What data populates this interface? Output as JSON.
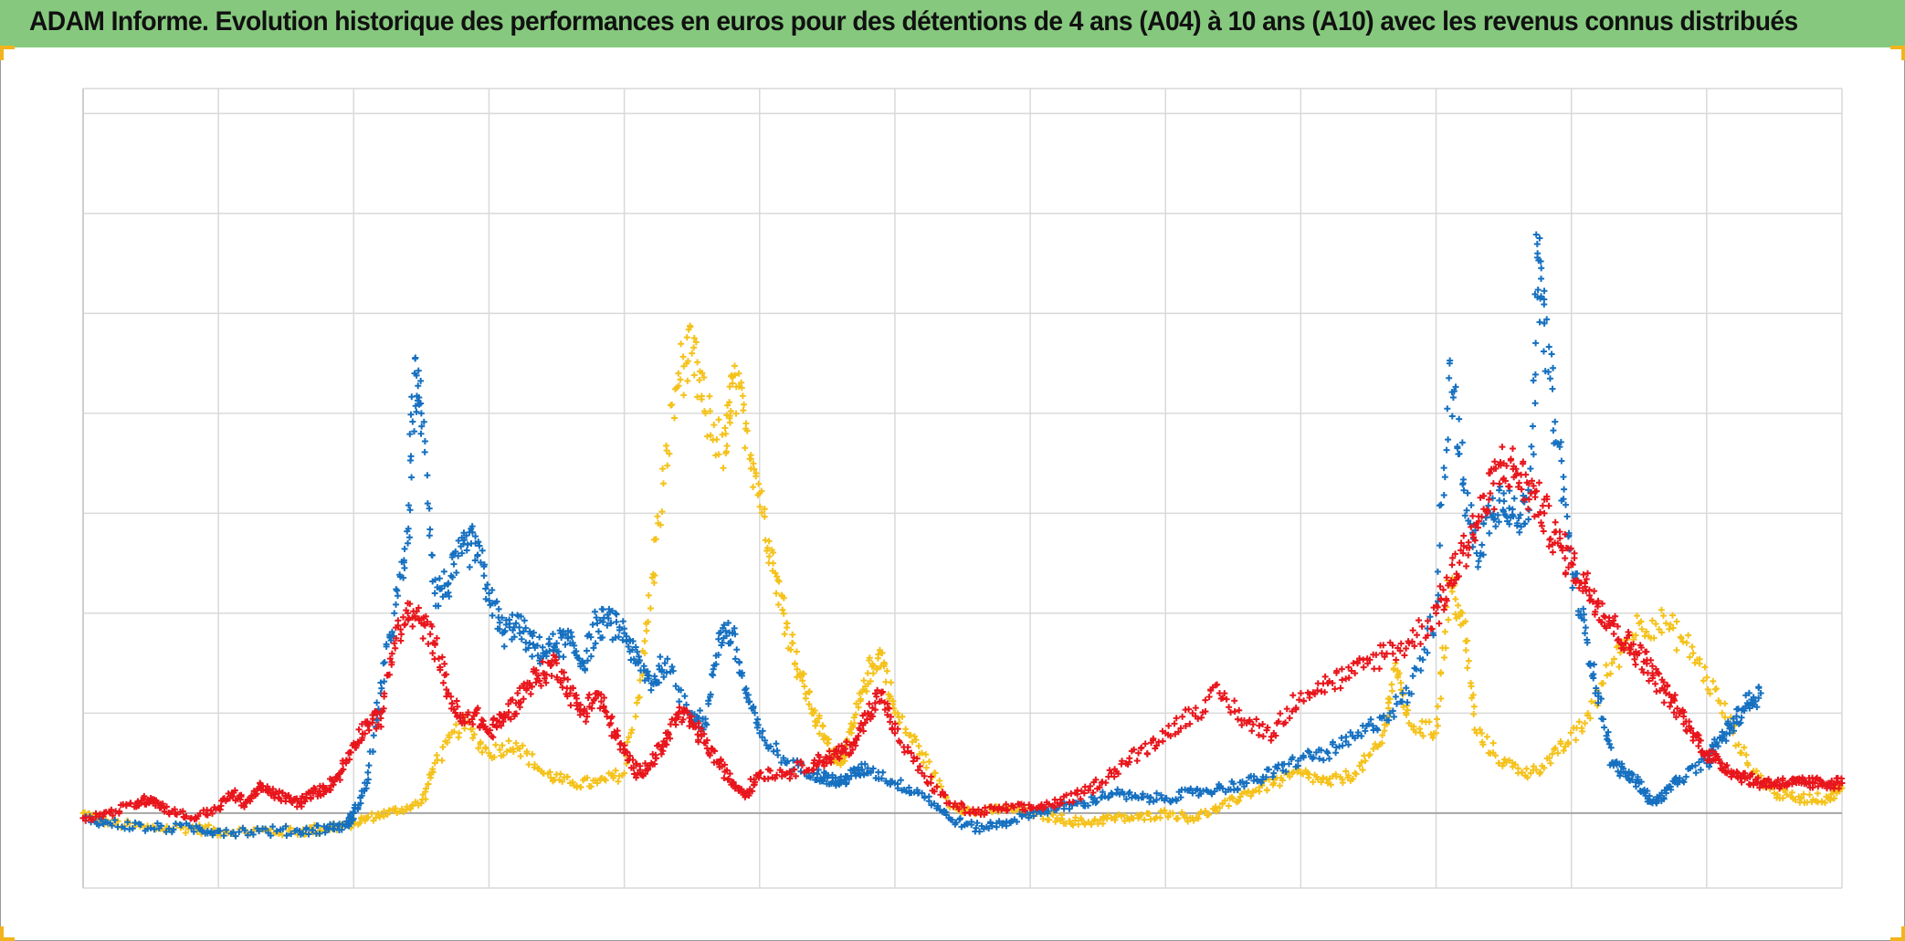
{
  "header": {
    "title": "ADAM Informe. Evolution historique des performances en euros pour des détentions de 4 ans (A04) à 10 ans (A10) avec les revenus connus distribués"
  },
  "chart_data": {
    "type": "scatter",
    "title": "ADAM Informe. Evolution historique des performances en euros pour des détentions de 4 ans (A04) à 10 ans (A10) avec les revenus connus distribués",
    "xlabel": "",
    "ylabel": "",
    "x_range": [
      0,
      13
    ],
    "y_range": [
      -0.75,
      7.25
    ],
    "x_gridlines": [
      0,
      1,
      2,
      3,
      4,
      5,
      6,
      7,
      8,
      9,
      10,
      11,
      12,
      13
    ],
    "y_gridlines": [
      -0.75,
      0,
      1,
      2,
      3,
      4,
      5,
      6,
      7,
      7.25
    ],
    "tick_labels_visible": false,
    "legend": "none",
    "marker": "+",
    "series": [
      {
        "name": "series-yellow",
        "color": "#f5c21b",
        "points": [
          [
            0.0,
            0.0
          ],
          [
            0.2,
            -0.1
          ],
          [
            0.5,
            -0.15
          ],
          [
            0.8,
            -0.15
          ],
          [
            1.0,
            -0.18
          ],
          [
            1.3,
            -0.18
          ],
          [
            1.6,
            -0.18
          ],
          [
            1.8,
            -0.15
          ],
          [
            1.95,
            -0.12
          ],
          [
            2.1,
            -0.05
          ],
          [
            2.3,
            0.02
          ],
          [
            2.5,
            0.1
          ],
          [
            2.6,
            0.5
          ],
          [
            2.8,
            0.9
          ],
          [
            3.0,
            0.6
          ],
          [
            3.2,
            0.7
          ],
          [
            3.4,
            0.4
          ],
          [
            3.6,
            0.3
          ],
          [
            3.8,
            0.3
          ],
          [
            4.0,
            0.4
          ],
          [
            4.15,
            1.6
          ],
          [
            4.25,
            2.9
          ],
          [
            4.4,
            4.4
          ],
          [
            4.5,
            4.6
          ],
          [
            4.6,
            4.0
          ],
          [
            4.75,
            3.6
          ],
          [
            4.8,
            4.3
          ],
          [
            4.9,
            3.9
          ],
          [
            5.0,
            3.2
          ],
          [
            5.1,
            2.5
          ],
          [
            5.2,
            1.9
          ],
          [
            5.3,
            1.4
          ],
          [
            5.4,
            1.0
          ],
          [
            5.5,
            0.7
          ],
          [
            5.6,
            0.5
          ],
          [
            5.7,
            0.9
          ],
          [
            5.8,
            1.4
          ],
          [
            5.9,
            1.6
          ],
          [
            6.0,
            1.0
          ],
          [
            6.2,
            0.6
          ],
          [
            6.4,
            0.1
          ],
          [
            6.6,
            0.0
          ],
          [
            6.8,
            0.05
          ],
          [
            7.0,
            0.0
          ],
          [
            7.2,
            -0.05
          ],
          [
            7.4,
            -0.1
          ],
          [
            7.6,
            -0.05
          ],
          [
            7.8,
            -0.05
          ],
          [
            8.0,
            0.0
          ],
          [
            8.2,
            -0.05
          ],
          [
            8.4,
            0.05
          ],
          [
            8.6,
            0.2
          ],
          [
            8.8,
            0.3
          ],
          [
            9.0,
            0.4
          ],
          [
            9.2,
            0.3
          ],
          [
            9.4,
            0.4
          ],
          [
            9.6,
            0.7
          ],
          [
            9.7,
            1.5
          ],
          [
            9.8,
            0.9
          ],
          [
            10.0,
            0.8
          ],
          [
            10.1,
            2.3
          ],
          [
            10.2,
            1.9
          ],
          [
            10.3,
            0.8
          ],
          [
            10.5,
            0.5
          ],
          [
            10.7,
            0.4
          ],
          [
            10.9,
            0.6
          ],
          [
            11.1,
            0.9
          ],
          [
            11.3,
            1.5
          ],
          [
            11.5,
            1.9
          ],
          [
            11.7,
            1.9
          ],
          [
            11.9,
            1.6
          ],
          [
            12.1,
            1.1
          ],
          [
            12.3,
            0.5
          ],
          [
            12.5,
            0.2
          ],
          [
            12.7,
            0.15
          ],
          [
            12.9,
            0.15
          ],
          [
            13.0,
            0.25
          ]
        ]
      },
      {
        "name": "series-blue",
        "color": "#1670c0",
        "points": [
          [
            0.0,
            -0.05
          ],
          [
            0.2,
            -0.1
          ],
          [
            0.5,
            -0.15
          ],
          [
            0.8,
            -0.15
          ],
          [
            1.0,
            -0.18
          ],
          [
            1.3,
            -0.18
          ],
          [
            1.6,
            -0.18
          ],
          [
            1.8,
            -0.15
          ],
          [
            1.95,
            -0.12
          ],
          [
            2.0,
            0.0
          ],
          [
            2.1,
            0.3
          ],
          [
            2.2,
            1.2
          ],
          [
            2.3,
            2.0
          ],
          [
            2.4,
            2.7
          ],
          [
            2.45,
            4.4
          ],
          [
            2.5,
            4.0
          ],
          [
            2.6,
            2.2
          ],
          [
            2.7,
            2.3
          ],
          [
            2.8,
            2.6
          ],
          [
            2.9,
            2.7
          ],
          [
            3.0,
            2.2
          ],
          [
            3.1,
            1.8
          ],
          [
            3.2,
            1.9
          ],
          [
            3.3,
            1.7
          ],
          [
            3.4,
            1.6
          ],
          [
            3.5,
            1.7
          ],
          [
            3.6,
            1.7
          ],
          [
            3.7,
            1.5
          ],
          [
            3.8,
            1.9
          ],
          [
            3.9,
            1.9
          ],
          [
            4.0,
            1.8
          ],
          [
            4.1,
            1.5
          ],
          [
            4.2,
            1.3
          ],
          [
            4.3,
            1.5
          ],
          [
            4.5,
            1.0
          ],
          [
            4.6,
            0.9
          ],
          [
            4.7,
            1.8
          ],
          [
            4.8,
            1.8
          ],
          [
            4.9,
            1.2
          ],
          [
            5.0,
            0.8
          ],
          [
            5.2,
            0.5
          ],
          [
            5.4,
            0.4
          ],
          [
            5.5,
            0.35
          ],
          [
            5.6,
            0.3
          ],
          [
            5.7,
            0.4
          ],
          [
            5.8,
            0.45
          ],
          [
            6.0,
            0.3
          ],
          [
            6.2,
            0.2
          ],
          [
            6.4,
            -0.05
          ],
          [
            6.6,
            -0.15
          ],
          [
            6.8,
            -0.1
          ],
          [
            7.0,
            0.0
          ],
          [
            7.2,
            0.05
          ],
          [
            7.4,
            0.1
          ],
          [
            7.6,
            0.2
          ],
          [
            7.8,
            0.15
          ],
          [
            8.0,
            0.15
          ],
          [
            8.2,
            0.2
          ],
          [
            8.4,
            0.25
          ],
          [
            8.6,
            0.3
          ],
          [
            8.8,
            0.4
          ],
          [
            9.0,
            0.55
          ],
          [
            9.2,
            0.6
          ],
          [
            9.4,
            0.75
          ],
          [
            9.6,
            0.95
          ],
          [
            9.8,
            1.2
          ],
          [
            10.0,
            2.0
          ],
          [
            10.1,
            4.5
          ],
          [
            10.2,
            3.3
          ],
          [
            10.3,
            2.6
          ],
          [
            10.4,
            3.0
          ],
          [
            10.5,
            3.2
          ],
          [
            10.6,
            2.9
          ],
          [
            10.7,
            3.2
          ],
          [
            10.75,
            5.6
          ],
          [
            10.8,
            4.9
          ],
          [
            10.9,
            3.7
          ],
          [
            11.0,
            2.5
          ],
          [
            11.1,
            1.8
          ],
          [
            11.2,
            1.2
          ],
          [
            11.3,
            0.5
          ],
          [
            11.4,
            0.4
          ],
          [
            11.5,
            0.3
          ],
          [
            11.6,
            0.1
          ],
          [
            11.7,
            0.2
          ],
          [
            11.8,
            0.35
          ],
          [
            12.0,
            0.5
          ],
          [
            12.1,
            0.75
          ],
          [
            12.2,
            0.9
          ],
          [
            12.3,
            1.1
          ],
          [
            12.4,
            1.2
          ]
        ]
      },
      {
        "name": "series-red",
        "color": "#e8161c",
        "points": [
          [
            0.0,
            -0.05
          ],
          [
            0.2,
            0.0
          ],
          [
            0.4,
            0.1
          ],
          [
            0.5,
            0.15
          ],
          [
            0.6,
            0.05
          ],
          [
            0.8,
            -0.05
          ],
          [
            1.0,
            0.05
          ],
          [
            1.1,
            0.2
          ],
          [
            1.2,
            0.1
          ],
          [
            1.3,
            0.25
          ],
          [
            1.4,
            0.2
          ],
          [
            1.5,
            0.15
          ],
          [
            1.6,
            0.1
          ],
          [
            1.7,
            0.2
          ],
          [
            1.8,
            0.25
          ],
          [
            1.9,
            0.4
          ],
          [
            2.0,
            0.7
          ],
          [
            2.1,
            0.9
          ],
          [
            2.2,
            0.95
          ],
          [
            2.3,
            1.7
          ],
          [
            2.4,
            2.0
          ],
          [
            2.5,
            1.9
          ],
          [
            2.6,
            1.7
          ],
          [
            2.7,
            1.2
          ],
          [
            2.8,
            0.9
          ],
          [
            2.9,
            1.0
          ],
          [
            3.0,
            0.8
          ],
          [
            3.1,
            0.95
          ],
          [
            3.2,
            1.1
          ],
          [
            3.3,
            1.3
          ],
          [
            3.4,
            1.4
          ],
          [
            3.5,
            1.5
          ],
          [
            3.6,
            1.2
          ],
          [
            3.7,
            1.0
          ],
          [
            3.8,
            1.2
          ],
          [
            3.9,
            0.9
          ],
          [
            4.0,
            0.6
          ],
          [
            4.1,
            0.4
          ],
          [
            4.2,
            0.5
          ],
          [
            4.3,
            0.7
          ],
          [
            4.4,
            1.0
          ],
          [
            4.5,
            0.9
          ],
          [
            4.6,
            0.7
          ],
          [
            4.7,
            0.5
          ],
          [
            4.8,
            0.3
          ],
          [
            4.9,
            0.2
          ],
          [
            5.0,
            0.4
          ],
          [
            5.2,
            0.4
          ],
          [
            5.4,
            0.5
          ],
          [
            5.5,
            0.55
          ],
          [
            5.6,
            0.6
          ],
          [
            5.7,
            0.7
          ],
          [
            5.8,
            1.0
          ],
          [
            5.9,
            1.2
          ],
          [
            6.0,
            0.8
          ],
          [
            6.2,
            0.4
          ],
          [
            6.4,
            0.1
          ],
          [
            6.6,
            0.0
          ],
          [
            6.8,
            0.05
          ],
          [
            7.0,
            0.05
          ],
          [
            7.2,
            0.1
          ],
          [
            7.4,
            0.2
          ],
          [
            7.6,
            0.4
          ],
          [
            7.8,
            0.6
          ],
          [
            8.0,
            0.8
          ],
          [
            8.2,
            1.0
          ],
          [
            8.4,
            1.2
          ],
          [
            8.6,
            0.9
          ],
          [
            8.8,
            0.8
          ],
          [
            9.0,
            1.2
          ],
          [
            9.2,
            1.3
          ],
          [
            9.4,
            1.4
          ],
          [
            9.6,
            1.6
          ],
          [
            9.8,
            1.7
          ],
          [
            10.0,
            2.0
          ],
          [
            10.1,
            2.3
          ],
          [
            10.2,
            2.6
          ],
          [
            10.3,
            2.9
          ],
          [
            10.4,
            3.2
          ],
          [
            10.5,
            3.5
          ],
          [
            10.6,
            3.4
          ],
          [
            10.7,
            3.2
          ],
          [
            10.8,
            3.0
          ],
          [
            10.9,
            2.7
          ],
          [
            11.0,
            2.5
          ],
          [
            11.1,
            2.3
          ],
          [
            11.2,
            2.1
          ],
          [
            11.3,
            1.9
          ],
          [
            11.4,
            1.7
          ],
          [
            11.5,
            1.6
          ],
          [
            11.6,
            1.4
          ],
          [
            11.7,
            1.2
          ],
          [
            11.8,
            1.0
          ],
          [
            11.9,
            0.8
          ],
          [
            12.0,
            0.6
          ],
          [
            12.1,
            0.5
          ],
          [
            12.2,
            0.4
          ],
          [
            12.3,
            0.35
          ],
          [
            12.4,
            0.3
          ],
          [
            12.5,
            0.3
          ],
          [
            12.6,
            0.3
          ],
          [
            12.7,
            0.3
          ],
          [
            12.8,
            0.3
          ],
          [
            12.9,
            0.3
          ],
          [
            13.0,
            0.3
          ]
        ]
      }
    ]
  }
}
